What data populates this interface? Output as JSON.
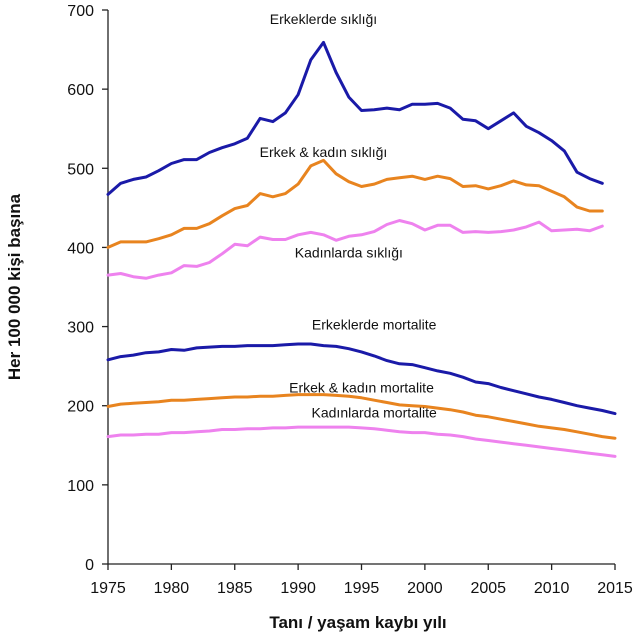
{
  "chart_data": {
    "type": "line",
    "title": "",
    "xlabel": "Tanı / yaşam kaybı yılı",
    "ylabel": "Her 100 000 kişi başına",
    "xlim": [
      1975,
      2015
    ],
    "ylim": [
      0,
      700
    ],
    "xticks": [
      1975,
      1980,
      1985,
      1990,
      1995,
      2000,
      2005,
      2010,
      2015
    ],
    "yticks": [
      0,
      100,
      200,
      300,
      400,
      500,
      600,
      700
    ],
    "grid": false,
    "legend": "inline labels",
    "series": [
      {
        "name": "Erkeklerde sıklığı",
        "color": "#1a1aa8",
        "x": [
          1975,
          1976,
          1977,
          1978,
          1979,
          1980,
          1981,
          1982,
          1983,
          1984,
          1985,
          1986,
          1987,
          1988,
          1989,
          1990,
          1991,
          1992,
          1993,
          1994,
          1995,
          1996,
          1997,
          1998,
          1999,
          2000,
          2001,
          2002,
          2003,
          2004,
          2005,
          2006,
          2007,
          2008,
          2009,
          2010,
          2011,
          2012,
          2013,
          2014
        ],
        "values": [
          467,
          481,
          486,
          489,
          497,
          506,
          511,
          511,
          520,
          526,
          531,
          538,
          563,
          559,
          570,
          593,
          637,
          659,
          621,
          590,
          573,
          574,
          576,
          574,
          581,
          581,
          582,
          576,
          562,
          560,
          550,
          560,
          570,
          553,
          545,
          535,
          522,
          495,
          487,
          481
        ]
      },
      {
        "name": "Erkek & kadın sıklığı",
        "color": "#e8841f",
        "x": [
          1975,
          1976,
          1977,
          1978,
          1979,
          1980,
          1981,
          1982,
          1983,
          1984,
          1985,
          1986,
          1987,
          1988,
          1989,
          1990,
          1991,
          1992,
          1993,
          1994,
          1995,
          1996,
          1997,
          1998,
          1999,
          2000,
          2001,
          2002,
          2003,
          2004,
          2005,
          2006,
          2007,
          2008,
          2009,
          2010,
          2011,
          2012,
          2013,
          2014
        ],
        "values": [
          400,
          407,
          407,
          407,
          411,
          416,
          424,
          424,
          430,
          440,
          449,
          453,
          468,
          464,
          468,
          480,
          503,
          510,
          493,
          483,
          477,
          480,
          486,
          488,
          490,
          486,
          490,
          487,
          477,
          478,
          474,
          478,
          484,
          479,
          478,
          471,
          464,
          451,
          446,
          446
        ]
      },
      {
        "name": "Kadınlarda sıklığı",
        "color": "#ee82ee",
        "x": [
          1975,
          1976,
          1977,
          1978,
          1979,
          1980,
          1981,
          1982,
          1983,
          1984,
          1985,
          1986,
          1987,
          1988,
          1989,
          1990,
          1991,
          1992,
          1993,
          1994,
          1995,
          1996,
          1997,
          1998,
          1999,
          2000,
          2001,
          2002,
          2003,
          2004,
          2005,
          2006,
          2007,
          2008,
          2009,
          2010,
          2011,
          2012,
          2013,
          2014
        ],
        "values": [
          365,
          367,
          363,
          361,
          365,
          368,
          377,
          376,
          381,
          392,
          404,
          402,
          413,
          410,
          410,
          416,
          419,
          416,
          409,
          414,
          416,
          420,
          429,
          434,
          430,
          422,
          428,
          428,
          419,
          420,
          419,
          420,
          422,
          426,
          432,
          421,
          422,
          423,
          421,
          427
        ]
      },
      {
        "name": "Erkeklerde mortalite",
        "color": "#1a1aa8",
        "x": [
          1975,
          1976,
          1977,
          1978,
          1979,
          1980,
          1981,
          1982,
          1983,
          1984,
          1985,
          1986,
          1987,
          1988,
          1989,
          1990,
          1991,
          1992,
          1993,
          1994,
          1995,
          1996,
          1997,
          1998,
          1999,
          2000,
          2001,
          2002,
          2003,
          2004,
          2005,
          2006,
          2007,
          2008,
          2009,
          2010,
          2011,
          2012,
          2013,
          2014,
          2015
        ],
        "values": [
          258,
          262,
          264,
          267,
          268,
          271,
          270,
          273,
          274,
          275,
          275,
          276,
          276,
          276,
          277,
          278,
          278,
          276,
          275,
          272,
          268,
          263,
          257,
          253,
          252,
          248,
          244,
          241,
          236,
          230,
          228,
          223,
          219,
          215,
          211,
          208,
          204,
          200,
          197,
          194,
          190
        ]
      },
      {
        "name": "Erkek & kadın mortalite",
        "color": "#e8841f",
        "x": [
          1975,
          1976,
          1977,
          1978,
          1979,
          1980,
          1981,
          1982,
          1983,
          1984,
          1985,
          1986,
          1987,
          1988,
          1989,
          1990,
          1991,
          1992,
          1993,
          1994,
          1995,
          1996,
          1997,
          1998,
          1999,
          2000,
          2001,
          2002,
          2003,
          2004,
          2005,
          2006,
          2007,
          2008,
          2009,
          2010,
          2011,
          2012,
          2013,
          2014,
          2015
        ],
        "values": [
          199,
          202,
          203,
          204,
          205,
          207,
          207,
          208,
          209,
          210,
          211,
          211,
          212,
          212,
          213,
          214,
          214,
          214,
          213,
          212,
          210,
          207,
          204,
          201,
          200,
          199,
          197,
          195,
          192,
          188,
          186,
          183,
          180,
          177,
          174,
          172,
          170,
          167,
          164,
          161,
          159
        ]
      },
      {
        "name": "Kadınlarda mortalite",
        "color": "#ee82ee",
        "x": [
          1975,
          1976,
          1977,
          1978,
          1979,
          1980,
          1981,
          1982,
          1983,
          1984,
          1985,
          1986,
          1987,
          1988,
          1989,
          1990,
          1991,
          1992,
          1993,
          1994,
          1995,
          1996,
          1997,
          1998,
          1999,
          2000,
          2001,
          2002,
          2003,
          2004,
          2005,
          2006,
          2007,
          2008,
          2009,
          2010,
          2011,
          2012,
          2013,
          2014,
          2015
        ],
        "values": [
          161,
          163,
          163,
          164,
          164,
          166,
          166,
          167,
          168,
          170,
          170,
          171,
          171,
          172,
          172,
          173,
          173,
          173,
          173,
          173,
          172,
          171,
          169,
          167,
          166,
          166,
          164,
          163,
          161,
          158,
          156,
          154,
          152,
          150,
          148,
          146,
          144,
          142,
          140,
          138,
          136
        ]
      }
    ]
  }
}
